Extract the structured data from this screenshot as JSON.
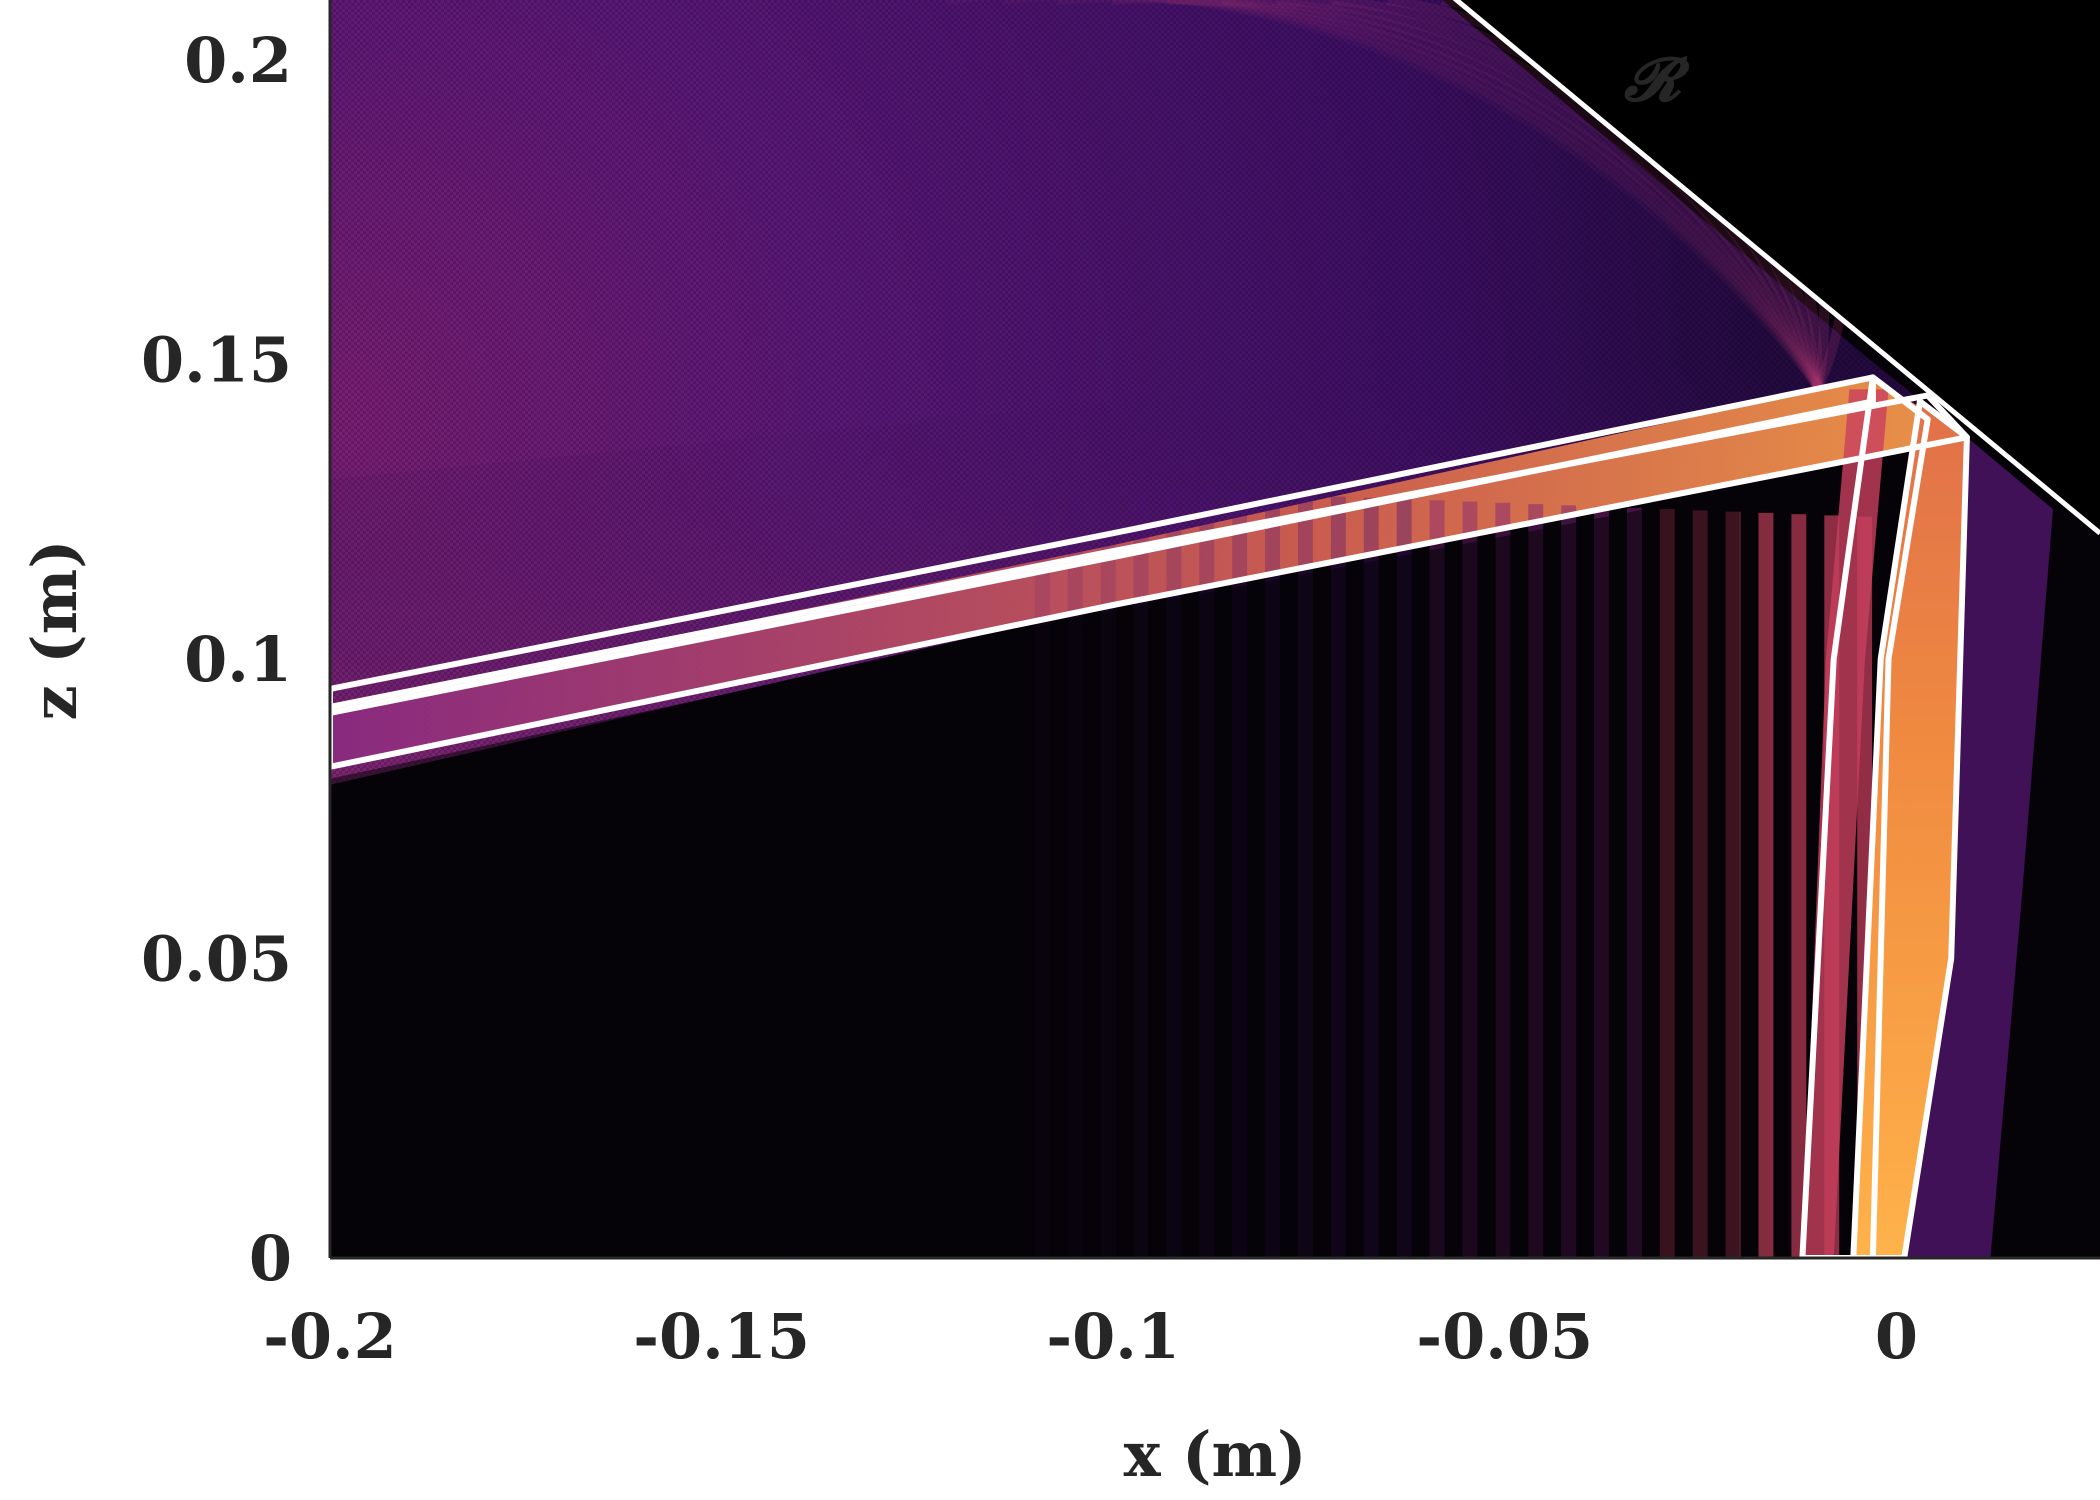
{
  "chart_data": {
    "type": "heatmap",
    "colormap": "inferno-like (black to purple to orange)",
    "xlabel": "x (m)",
    "ylabel": "z (m)",
    "xlim": [
      -0.2,
      0.026
    ],
    "ylim": [
      0,
      0.21
    ],
    "x_ticks": [
      -0.2,
      -0.15,
      -0.1,
      -0.05,
      0
    ],
    "x_tick_labels": [
      "-0.2",
      "-0.15",
      "-0.1",
      "-0.05",
      "0"
    ],
    "y_ticks": [
      0,
      0.05,
      0.1,
      0.15,
      0.2
    ],
    "y_tick_labels": [
      "0",
      "0.05",
      "0.1",
      "0.15",
      "0.2"
    ],
    "grid": false,
    "colors": {
      "background": "#050308",
      "purple": "#4a1078",
      "magenta": "#9a2a6c",
      "orange": "#f08a40",
      "yellow": "#ffb24a",
      "outline": "#ffffff"
    },
    "region_label": "𝓡",
    "reflector_boundary": [
      [
        -0.058,
        0.212
      ],
      [
        0.026,
        0.121
      ]
    ],
    "beams": [
      {
        "name": "",
        "upright_outline": [
          [
            -0.012,
            0.0
          ],
          [
            -0.003,
            0.0
          ],
          [
            -0.001,
            0.1
          ],
          [
            0.004,
            0.14
          ],
          [
            -0.003,
            0.147
          ],
          [
            -0.008,
            0.1
          ]
        ],
        "oblique_outline": [
          [
            -0.2,
            0.095
          ],
          [
            -0.1,
            0.121
          ],
          [
            -0.003,
            0.147
          ],
          [
            -0.003,
            0.143
          ],
          [
            -0.1,
            0.117
          ],
          [
            -0.2,
            0.091
          ]
        ]
      },
      {
        "name": "",
        "upright_outline": [
          [
            -0.0055,
            0.0
          ],
          [
            0.001,
            0.0
          ],
          [
            0.007,
            0.05
          ],
          [
            0.009,
            0.137
          ],
          [
            0.003,
            0.143
          ],
          [
            -0.002,
            0.1
          ]
        ],
        "oblique_outline": [
          [
            -0.2,
            0.092
          ],
          [
            -0.1,
            0.118
          ],
          [
            0.004,
            0.144
          ],
          [
            0.009,
            0.137
          ],
          [
            -0.1,
            0.109
          ],
          [
            -0.2,
            0.082
          ]
        ]
      }
    ]
  }
}
